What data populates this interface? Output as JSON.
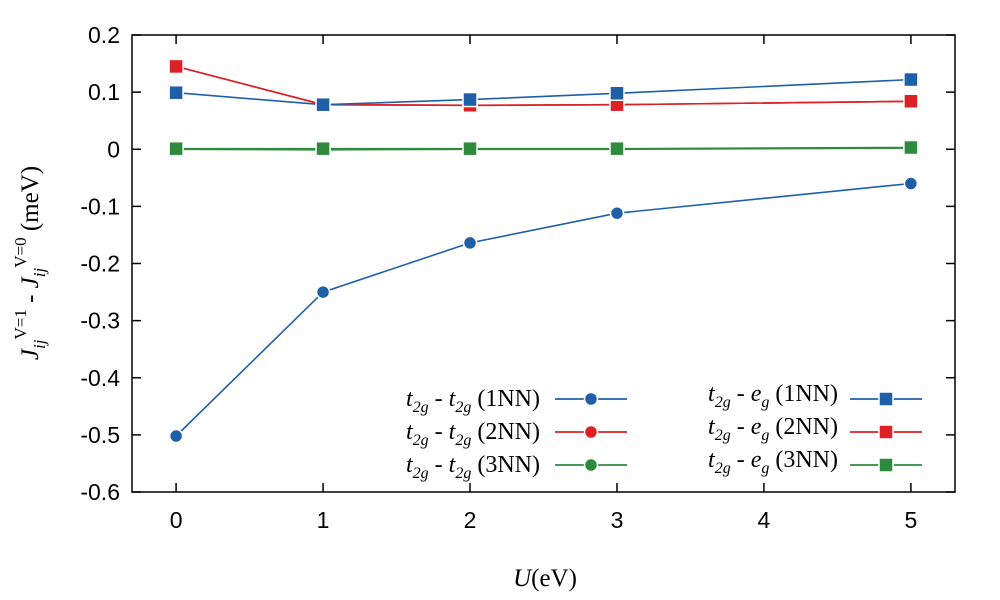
{
  "chart_data": {
    "type": "line",
    "title": "",
    "xlabel": {
      "main": "U",
      "unit": "(eV)"
    },
    "ylabel": {
      "j1": "J",
      "ij1": "ij",
      "sup1": "V=1",
      "dash": " - ",
      "j2": "J",
      "ij2": "ij",
      "sup2": "V=0",
      "unit": " (meV)"
    },
    "xlim": [
      -0.3,
      5.3
    ],
    "ylim": [
      -0.6,
      0.2
    ],
    "xticks": [
      0,
      1,
      2,
      3,
      4,
      5
    ],
    "xtick_labels": [
      "0",
      "1",
      "2",
      "3",
      "4",
      "5"
    ],
    "yticks": [
      -0.6,
      -0.5,
      -0.4,
      -0.3,
      -0.2,
      -0.1,
      0,
      0.1,
      0.2
    ],
    "ytick_labels": [
      "-0.6",
      "-0.5",
      "-0.4",
      "-0.3",
      "-0.2",
      "-0.1",
      "0",
      "0.1",
      "0.2"
    ],
    "x": [
      0,
      1,
      2,
      3,
      5
    ],
    "series": [
      {
        "name": "t2g - t2g (1NN)",
        "color": "#1f5fa8",
        "marker": "circle",
        "values": [
          -0.502,
          -0.25,
          -0.164,
          -0.112,
          -0.06
        ]
      },
      {
        "name": "t2g - t2g (2NN)",
        "color": "#dd1f26",
        "marker": "circle",
        "values": [
          0.145,
          0.078,
          0.077,
          0.078,
          0.084
        ]
      },
      {
        "name": "t2g - t2g (3NN)",
        "color": "#2e8b3d",
        "marker": "circle",
        "values": [
          0.0,
          -0.001,
          0.0,
          0.0,
          0.002
        ]
      },
      {
        "name": "t2g - eg (1NN)",
        "color": "#1f5fa8",
        "marker": "square",
        "values": [
          0.099,
          0.078,
          0.087,
          0.098,
          0.122
        ]
      },
      {
        "name": "t2g - eg (2NN)",
        "color": "#dd1f26",
        "marker": "square",
        "values": [
          0.145,
          0.078,
          0.077,
          0.078,
          0.084
        ]
      },
      {
        "name": "t2g - eg (3NN)",
        "color": "#2e8b3d",
        "marker": "square",
        "values": [
          0.001,
          0.001,
          0.001,
          0.001,
          0.003
        ]
      }
    ],
    "legend": {
      "placement": "bottom-right",
      "entries": [
        {
          "a": "t",
          "a_sub": "2g",
          "sep": " - ",
          "b": "t",
          "b_sub": "2g",
          "tag": " (1NN)"
        },
        {
          "a": "t",
          "a_sub": "2g",
          "sep": " - ",
          "b": "t",
          "b_sub": "2g",
          "tag": " (2NN)"
        },
        {
          "a": "t",
          "a_sub": "2g",
          "sep": " - ",
          "b": "t",
          "b_sub": "2g",
          "tag": " (3NN)"
        },
        {
          "a": "t",
          "a_sub": "2g",
          "sep": " - ",
          "b": "e",
          "b_sub": "g",
          "tag": " (1NN)"
        },
        {
          "a": "t",
          "a_sub": "2g",
          "sep": " - ",
          "b": "e",
          "b_sub": "g",
          "tag": " (2NN)"
        },
        {
          "a": "t",
          "a_sub": "2g",
          "sep": " - ",
          "b": "e",
          "b_sub": "g",
          "tag": " (3NN)"
        }
      ]
    }
  }
}
